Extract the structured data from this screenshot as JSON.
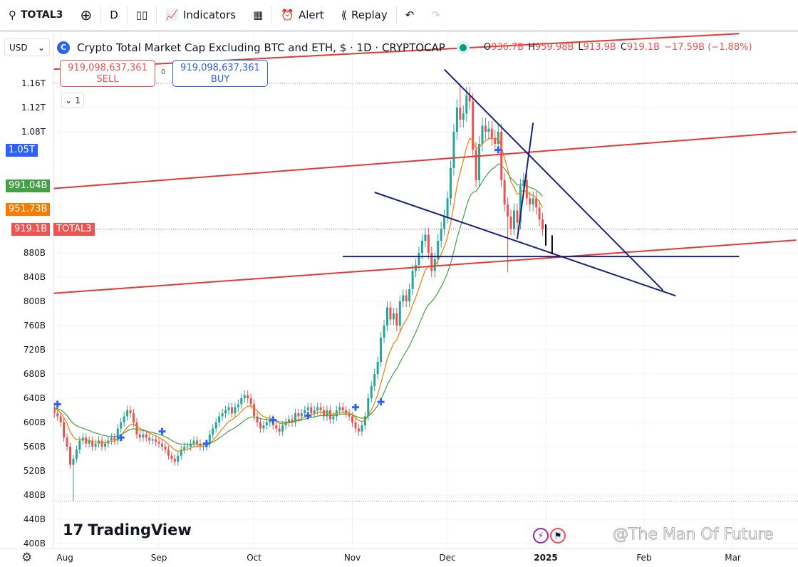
{
  "toolbar": {
    "symbol": "TOTAL3",
    "interval": "D",
    "indicators": "Indicators",
    "alert": "Alert",
    "replay": "Replay"
  },
  "header": {
    "currency": "USD",
    "title": "Crypto Total Market Cap Excluding BTC and ETH, $ · 1D · CRYPTOCAP",
    "ohlc": {
      "o_label": "O",
      "o": "936.7B",
      "h_label": "H",
      "h": "959.98B",
      "l_label": "L",
      "l": "913.9B",
      "c_label": "C",
      "c": "919.1B",
      "change": "−17.59B (−1.88%)"
    }
  },
  "trade": {
    "sell_price": "919,098,637,361",
    "sell_label": "SELL",
    "buy_price": "919,098,637,361",
    "buy_label": "BUY",
    "spread": "0"
  },
  "collapse_label": "1",
  "badges": [
    {
      "text": "1.05T",
      "color": "#2962ff",
      "price": 1050
    },
    {
      "text": "991.04B",
      "color": "#43a047",
      "price": 991.04
    },
    {
      "text": "951.73B",
      "color": "#f57c00",
      "price": 951.73
    },
    {
      "text": "919.1B",
      "color": "#ef5350",
      "price": 919.1
    }
  ],
  "symbol_badge": "TOTAL3",
  "logo": "TradingView",
  "watermark": "@The Man Of Future",
  "colors": {
    "up": "#26a69a",
    "down": "#ef5350",
    "ema_fast": "#f57c00",
    "ema_slow": "#43a047",
    "trend_red": "#e53935",
    "trend_blue": "#1a237e"
  },
  "chart_data": {
    "type": "candlestick",
    "start_date": "2024-07-29",
    "close": [
      625,
      615,
      610,
      600,
      575,
      560,
      530,
      540,
      555,
      570,
      575,
      565,
      570,
      560,
      565,
      570,
      560,
      565,
      570,
      575,
      570,
      590,
      600,
      610,
      620,
      615,
      600,
      580,
      575,
      580,
      575,
      570,
      572,
      568,
      565,
      560,
      555,
      545,
      540,
      535,
      545,
      555,
      560,
      560,
      565,
      570,
      565,
      560,
      560,
      565,
      580,
      590,
      600,
      610,
      615,
      620,
      625,
      615,
      625,
      630,
      640,
      645,
      640,
      630,
      610,
      600,
      590,
      595,
      600,
      605,
      595,
      590,
      585,
      595,
      600,
      605,
      600,
      615,
      610,
      615,
      620,
      625,
      615,
      620,
      625,
      620,
      610,
      620,
      605,
      610,
      620,
      625,
      620,
      615,
      610,
      600,
      590,
      585,
      595,
      610,
      640,
      660,
      680,
      700,
      740,
      760,
      790,
      770,
      780,
      760,
      800,
      810,
      800,
      820,
      850,
      860,
      880,
      900,
      910,
      880,
      850,
      870,
      900,
      920,
      940,
      970,
      1020,
      1080,
      1120,
      1100,
      1110,
      1140,
      1130,
      1050,
      1000,
      1060,
      1090,
      1080,
      1085,
      1070,
      1060,
      1080,
      1000,
      960,
      940,
      920,
      950,
      930,
      990,
      1000,
      970,
      960,
      970,
      955,
      935,
      919
    ],
    "notable_wicks": [
      {
        "date": "2024-08-05",
        "low": 470
      },
      {
        "date": "2024-12-05",
        "high": 1160
      },
      {
        "date": "2024-12-20",
        "low": 848
      }
    ],
    "moving_averages": [
      "EMA fast (orange)",
      "EMA slow (green)"
    ],
    "y_unit": "USD",
    "y_ticks": [
      {
        "v": 1160,
        "t": "1.16T"
      },
      {
        "v": 1120,
        "t": "1.12T"
      },
      {
        "v": 1080,
        "t": "1.08T"
      },
      {
        "v": 880,
        "t": "880B"
      },
      {
        "v": 840,
        "t": "840B"
      },
      {
        "v": 800,
        "t": "800B"
      },
      {
        "v": 760,
        "t": "760B"
      },
      {
        "v": 720,
        "t": "720B"
      },
      {
        "v": 680,
        "t": "680B"
      },
      {
        "v": 640,
        "t": "640B"
      },
      {
        "v": 600,
        "t": "600B"
      },
      {
        "v": 560,
        "t": "560B"
      },
      {
        "v": 520,
        "t": "520B"
      },
      {
        "v": 480,
        "t": "480B"
      },
      {
        "v": 440,
        "t": "440B"
      },
      {
        "v": 400,
        "t": "400B"
      }
    ],
    "x_ticks": [
      {
        "d": "2024-08-01",
        "t": "Aug"
      },
      {
        "d": "2024-09-01",
        "t": "Sep"
      },
      {
        "d": "2024-10-01",
        "t": "Oct"
      },
      {
        "d": "2024-11-01",
        "t": "Nov"
      },
      {
        "d": "2024-12-01",
        "t": "Dec"
      },
      {
        "d": "2025-01-01",
        "t": "2025"
      },
      {
        "d": "2025-02-01",
        "t": "Feb"
      },
      {
        "d": "2025-03-01",
        "t": "Mar"
      }
    ],
    "price_lines": [
      {
        "price": 1160,
        "style": "dotted"
      },
      {
        "price": 470,
        "style": "dotted"
      },
      {
        "price": 919.1,
        "style": "dotted-red"
      }
    ],
    "trendlines": [
      {
        "color": "red",
        "from": [
          "2024-07-29",
          1183
        ],
        "to": [
          "2025-03-03",
          1242
        ]
      },
      {
        "color": "red",
        "from": [
          "2024-07-29",
          986
        ],
        "to": [
          "2025-03-21",
          1080
        ]
      },
      {
        "color": "red",
        "from": [
          "2024-07-29",
          813
        ],
        "to": [
          "2025-03-21",
          901
        ]
      },
      {
        "color": "blue",
        "from": [
          "2024-10-29",
          874
        ],
        "to": [
          "2025-03-03",
          874
        ]
      },
      {
        "color": "blue",
        "from": [
          "2024-11-30",
          1183
        ],
        "to": [
          "2025-02-07",
          818
        ]
      },
      {
        "color": "blue",
        "from": [
          "2024-11-08",
          980
        ],
        "to": [
          "2025-02-11",
          809
        ]
      },
      {
        "color": "blue",
        "from": [
          "2024-12-23",
          903
        ],
        "to": [
          "2024-12-28",
          1095
        ]
      },
      {
        "color": "black",
        "from": [
          "2025-01-01",
          927
        ],
        "to": [
          "2025-01-01",
          892
        ]
      },
      {
        "color": "black",
        "from": [
          "2025-01-03",
          909
        ],
        "to": [
          "2025-01-03",
          878
        ]
      }
    ],
    "signals": [
      [
        "2024-07-31",
        630
      ],
      [
        "2024-08-20",
        575
      ],
      [
        "2024-09-02",
        585
      ],
      [
        "2024-09-16",
        565
      ],
      [
        "2024-10-07",
        604
      ],
      [
        "2024-10-18",
        611
      ],
      [
        "2024-11-02",
        625
      ],
      [
        "2024-11-10",
        634
      ],
      [
        "2024-12-17",
        1050
      ]
    ]
  }
}
